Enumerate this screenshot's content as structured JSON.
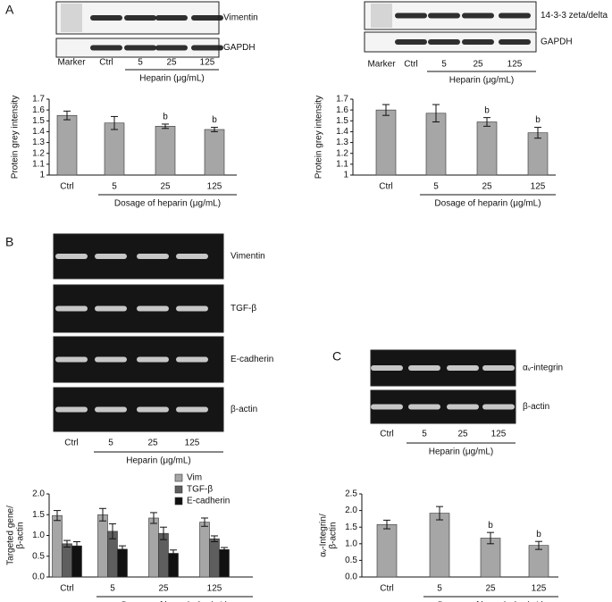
{
  "figure": {
    "panel_letters": [
      "A",
      "B",
      "C"
    ],
    "blots": [
      {
        "bands": [
          "Vimentin",
          "GAPDH"
        ],
        "lanes": [
          "Marker",
          "Ctrl",
          "5",
          "25",
          "125"
        ],
        "treatment": "Heparin (μg/mL)"
      },
      {
        "bands": [
          "14-3-3 zeta/delta",
          "GAPDH"
        ],
        "lanes": [
          "Marker",
          "Ctrl",
          "5",
          "25",
          "125"
        ],
        "treatment": "Heparin (μg/mL)"
      },
      {
        "bands": [
          "Vimentin",
          "TGF-β",
          "E-cadherin",
          "β-actin"
        ],
        "lanes": [
          "Ctrl",
          "5",
          "25",
          "125"
        ],
        "treatment": "Heparin (μg/mL)"
      },
      {
        "bands": [
          "αᵥ-integrin",
          "β-actin"
        ],
        "lanes": [
          "Ctrl",
          "5",
          "25",
          "125"
        ],
        "treatment": "Heparin (μg/mL)"
      }
    ]
  },
  "chart_data": [
    {
      "type": "bar",
      "ylabel": [
        "Protein grey intensity"
      ],
      "xlabel": "Dosage of heparin (μg/mL)",
      "categories": [
        "Ctrl",
        "5",
        "25",
        "125"
      ],
      "values": [
        1.55,
        1.48,
        1.45,
        1.42
      ],
      "errors": [
        0.04,
        0.06,
        0.02,
        0.02
      ],
      "value_annotations": [
        null,
        null,
        "b",
        "b"
      ],
      "color": "#a6a6a6",
      "ylim": [
        1,
        1.7
      ],
      "yticks": [
        1,
        1.1,
        1.2,
        1.3,
        1.4,
        1.5,
        1.6,
        1.7
      ]
    },
    {
      "type": "bar",
      "ylabel": [
        "Protein grey intensity"
      ],
      "xlabel": "Dosage of heparin (μg/mL)",
      "categories": [
        "Ctrl",
        "5",
        "25",
        "125"
      ],
      "values": [
        1.6,
        1.57,
        1.49,
        1.39
      ],
      "errors": [
        0.05,
        0.08,
        0.04,
        0.05
      ],
      "value_annotations": [
        null,
        null,
        "b",
        "b"
      ],
      "color": "#a6a6a6",
      "ylim": [
        1,
        1.7
      ],
      "yticks": [
        1,
        1.1,
        1.2,
        1.3,
        1.4,
        1.5,
        1.6,
        1.7
      ]
    },
    {
      "type": "bar",
      "ylabel": [
        "Targeted gene/",
        "β-actin"
      ],
      "xlabel": "Dosage of heparin (μg/mL)",
      "categories": [
        "Ctrl",
        "5",
        "25",
        "125"
      ],
      "series": [
        {
          "name": "Vim",
          "color": "#a6a6a6",
          "values": [
            1.48,
            1.5,
            1.42,
            1.32
          ],
          "errors": [
            0.12,
            0.15,
            0.13,
            0.1
          ]
        },
        {
          "name": "TGF-β",
          "color": "#5e5e5e",
          "values": [
            0.8,
            1.1,
            1.05,
            0.92
          ],
          "errors": [
            0.08,
            0.18,
            0.15,
            0.07
          ]
        },
        {
          "name": "E-cadherin",
          "color": "#111111",
          "values": [
            0.75,
            0.67,
            0.57,
            0.66
          ],
          "errors": [
            0.1,
            0.08,
            0.08,
            0.05
          ]
        }
      ],
      "ylim": [
        0,
        2
      ],
      "yticks": [
        {
          "value": 0,
          "label": "0.0"
        },
        {
          "value": 0.5,
          "label": "0.5"
        },
        {
          "value": 1,
          "label": "1.0"
        },
        {
          "value": 1.5,
          "label": "1.5"
        },
        {
          "value": 2,
          "label": "2.0"
        }
      ]
    },
    {
      "type": "bar",
      "ylabel": [
        "αᵥ-Integrin/",
        "β-actin"
      ],
      "xlabel": "Dosage of heparin (μg/mL)",
      "categories": [
        "Ctrl",
        "5",
        "25",
        "125"
      ],
      "values": [
        1.58,
        1.92,
        1.17,
        0.95
      ],
      "errors": [
        0.13,
        0.2,
        0.17,
        0.12
      ],
      "value_annotations": [
        null,
        null,
        "b",
        "b"
      ],
      "color": "#a6a6a6",
      "ylim": [
        0,
        2.5
      ],
      "yticks": [
        {
          "value": 0,
          "label": "0.0"
        },
        {
          "value": 0.5,
          "label": "0.5"
        },
        {
          "value": 1,
          "label": "1.0"
        },
        {
          "value": 1.5,
          "label": "1.5"
        },
        {
          "value": 2,
          "label": "2.0"
        },
        {
          "value": 2.5,
          "label": "2.5"
        }
      ]
    }
  ]
}
